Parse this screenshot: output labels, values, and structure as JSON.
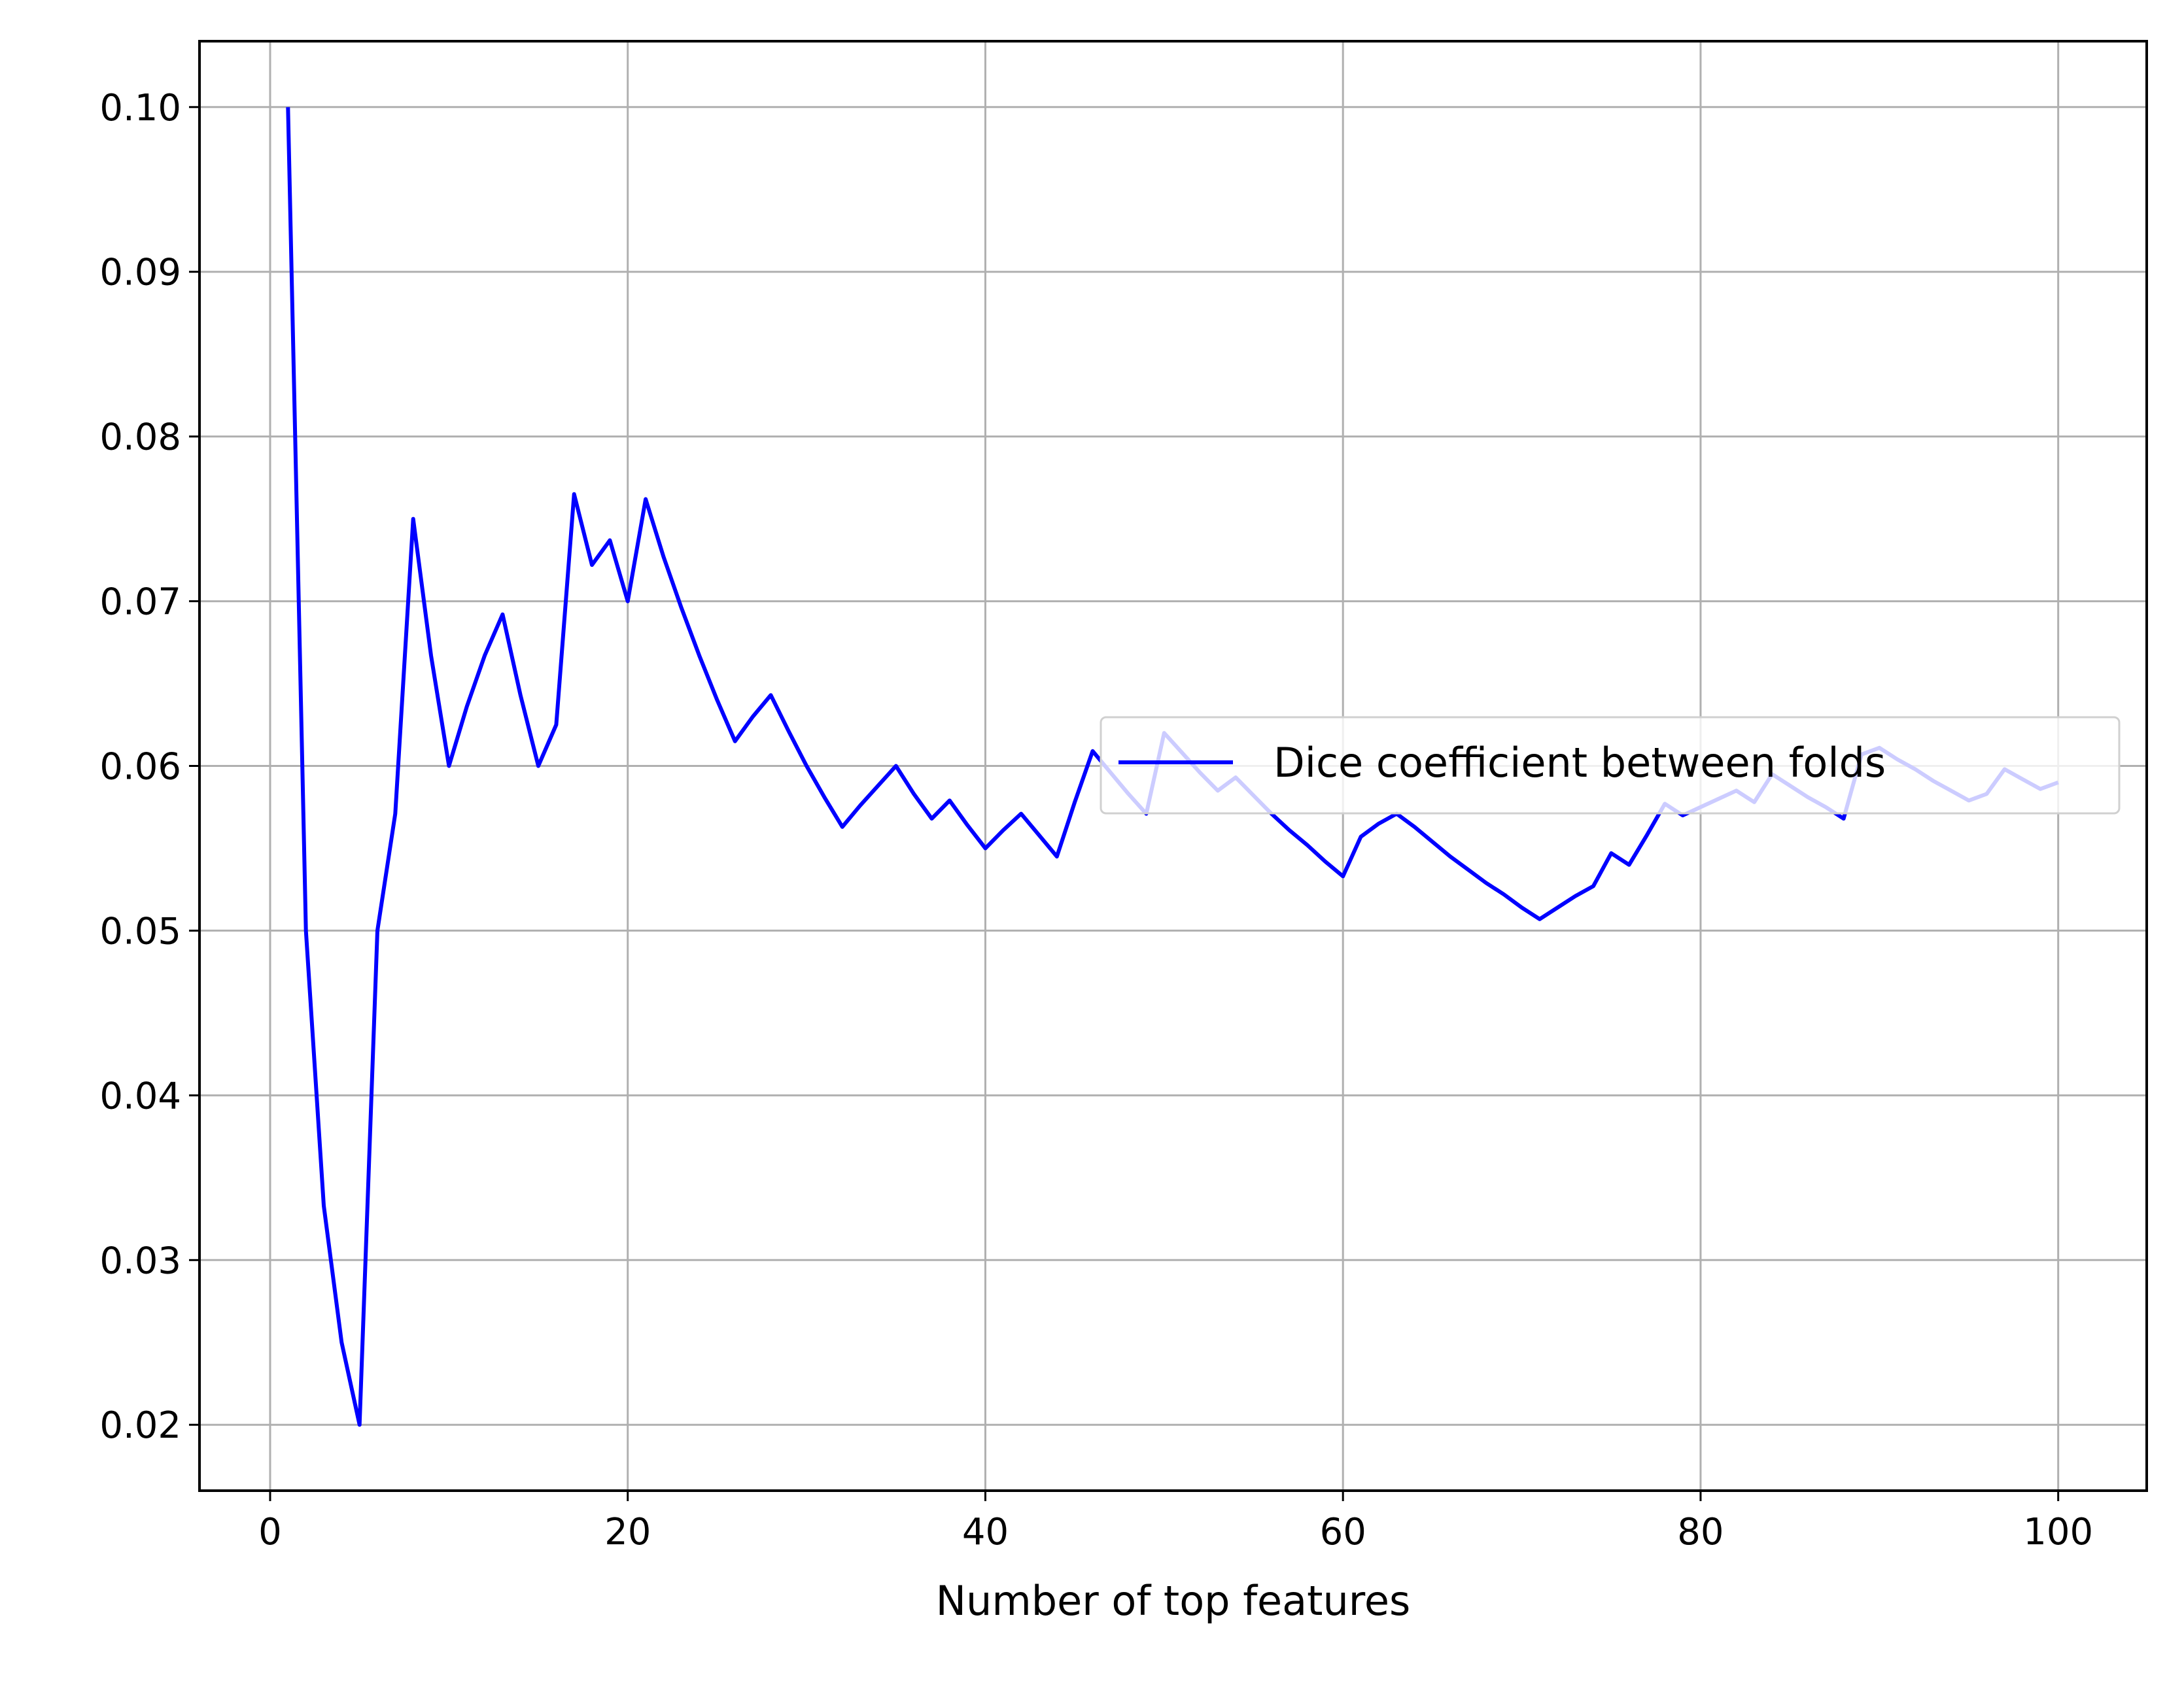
{
  "chart_data": {
    "type": "line",
    "title": "",
    "xlabel": "Number of top features",
    "ylabel": "",
    "xlim": [
      -3.95,
      104.95
    ],
    "ylim": [
      0.016,
      0.104
    ],
    "xticks": [
      0,
      20,
      40,
      60,
      80,
      100
    ],
    "yticks": [
      0.02,
      0.03,
      0.04,
      0.05,
      0.06,
      0.07,
      0.08,
      0.09,
      0.1
    ],
    "xtick_labels": [
      "0",
      "20",
      "40",
      "60",
      "80",
      "100"
    ],
    "ytick_labels": [
      "0.02",
      "0.03",
      "0.04",
      "0.05",
      "0.06",
      "0.07",
      "0.08",
      "0.09",
      "0.10"
    ],
    "grid": true,
    "legend_position": "center-right",
    "series": [
      {
        "name": "Dice coefficient between folds",
        "color": "#0000ff",
        "x": [
          1,
          2,
          3,
          4,
          5,
          6,
          7,
          8,
          9,
          10,
          11,
          12,
          13,
          14,
          15,
          16,
          17,
          18,
          19,
          20,
          21,
          22,
          23,
          24,
          25,
          26,
          27,
          28,
          29,
          30,
          31,
          32,
          33,
          34,
          35,
          36,
          37,
          38,
          39,
          40,
          41,
          42,
          43,
          44,
          45,
          46,
          47,
          48,
          49,
          50,
          51,
          52,
          53,
          54,
          55,
          56,
          57,
          58,
          59,
          60,
          61,
          62,
          63,
          64,
          65,
          66,
          67,
          68,
          69,
          70,
          71,
          72,
          73,
          74,
          75,
          76,
          77,
          78,
          79,
          80,
          81,
          82,
          83,
          84,
          85,
          86,
          87,
          88,
          89,
          90,
          91,
          92,
          93,
          94,
          95,
          96,
          97,
          98,
          99,
          100
        ],
        "y": [
          0.1,
          0.05,
          0.0333,
          0.025,
          0.02,
          0.05,
          0.0571,
          0.075,
          0.0667,
          0.06,
          0.0636,
          0.0667,
          0.0692,
          0.0643,
          0.06,
          0.0625,
          0.0765,
          0.0722,
          0.0737,
          0.07,
          0.0762,
          0.0727,
          0.0696,
          0.0667,
          0.064,
          0.0615,
          0.063,
          0.0643,
          0.0621,
          0.06,
          0.0581,
          0.0563,
          0.0576,
          0.0588,
          0.06,
          0.0583,
          0.0568,
          0.0579,
          0.0564,
          0.055,
          0.0561,
          0.0571,
          0.0558,
          0.0545,
          0.0578,
          0.0609,
          0.0596,
          0.0583,
          0.0571,
          0.062,
          0.0608,
          0.0596,
          0.0585,
          0.0593,
          0.0582,
          0.0571,
          0.0561,
          0.0552,
          0.0542,
          0.0533,
          0.0557,
          0.0565,
          0.0571,
          0.0563,
          0.0554,
          0.0545,
          0.0537,
          0.0529,
          0.0522,
          0.0514,
          0.0507,
          0.0514,
          0.0521,
          0.0527,
          0.0547,
          0.054,
          0.0558,
          0.0577,
          0.057,
          0.0575,
          0.058,
          0.0585,
          0.0578,
          0.0595,
          0.0588,
          0.0581,
          0.0575,
          0.0568,
          0.0607,
          0.0611,
          0.0604,
          0.0598,
          0.0591,
          0.0585,
          0.0579,
          0.0583,
          0.0598,
          0.0592,
          0.0586,
          0.059
        ]
      }
    ]
  }
}
